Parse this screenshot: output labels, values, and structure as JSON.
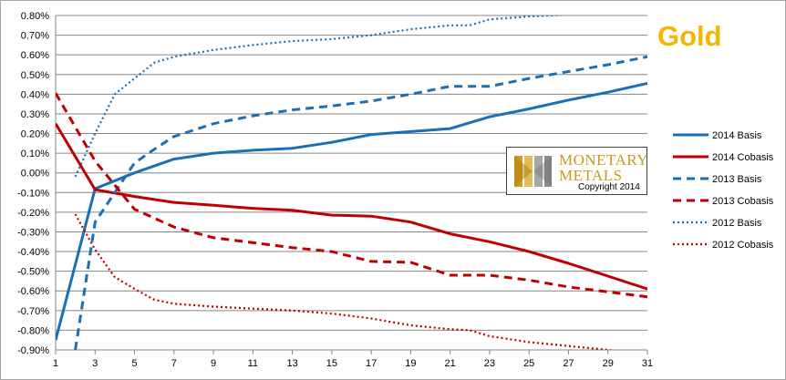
{
  "chart_data": {
    "type": "line",
    "title": "Gold",
    "x_ticks": [
      "1",
      "3",
      "5",
      "7",
      "9",
      "11",
      "13",
      "15",
      "17",
      "19",
      "21",
      "23",
      "25",
      "27",
      "29",
      "31"
    ],
    "y_ticks": [
      "0.80%",
      "0.70%",
      "0.60%",
      "0.50%",
      "0.40%",
      "0.30%",
      "0.20%",
      "0.10%",
      "0.00%",
      "-0.10%",
      "-0.20%",
      "-0.30%",
      "-0.40%",
      "-0.50%",
      "-0.60%",
      "-0.70%",
      "-0.80%",
      "-0.90%"
    ],
    "xlim": [
      1,
      31
    ],
    "ylim": [
      -0.9,
      0.8
    ],
    "y_unit": "%",
    "grid": "horizontal",
    "legend_position": "right",
    "series": [
      {
        "name": "2014 Basis",
        "color": "#1a6fb5",
        "style": "solid",
        "x": [
          1,
          3,
          5,
          7,
          9,
          11,
          13,
          15,
          17,
          19,
          21,
          23,
          25,
          27,
          29,
          31
        ],
        "values": [
          -0.85,
          -0.08,
          0.0,
          0.07,
          0.1,
          0.115,
          0.125,
          0.155,
          0.195,
          0.21,
          0.225,
          0.285,
          0.325,
          0.37,
          0.41,
          0.455
        ]
      },
      {
        "name": "2014 Cobasis",
        "color": "#c00000",
        "style": "solid",
        "x": [
          1,
          3,
          5,
          7,
          9,
          11,
          13,
          15,
          17,
          19,
          21,
          23,
          25,
          27,
          29,
          31
        ],
        "values": [
          0.25,
          -0.085,
          -0.12,
          -0.15,
          -0.165,
          -0.18,
          -0.19,
          -0.215,
          -0.22,
          -0.25,
          -0.31,
          -0.35,
          -0.4,
          -0.46,
          -0.525,
          -0.59
        ]
      },
      {
        "name": "2013 Basis",
        "color": "#1a6fb5",
        "style": "dashed",
        "x": [
          2,
          3,
          4,
          5,
          6,
          7,
          9,
          11,
          13,
          15,
          17,
          19,
          21,
          23,
          25,
          27,
          29,
          31
        ],
        "values": [
          -0.9,
          -0.25,
          -0.1,
          0.05,
          0.12,
          0.185,
          0.25,
          0.29,
          0.32,
          0.34,
          0.365,
          0.4,
          0.44,
          0.44,
          0.48,
          0.515,
          0.55,
          0.59
        ]
      },
      {
        "name": "2013 Cobasis",
        "color": "#c00000",
        "style": "dashed",
        "x": [
          1,
          3,
          5,
          7,
          9,
          11,
          13,
          15,
          17,
          19,
          21,
          23,
          25,
          27,
          29,
          31
        ],
        "values": [
          0.405,
          0.06,
          -0.185,
          -0.275,
          -0.33,
          -0.355,
          -0.38,
          -0.4,
          -0.45,
          -0.455,
          -0.52,
          -0.52,
          -0.545,
          -0.58,
          -0.605,
          -0.63
        ]
      },
      {
        "name": "2012 Basis",
        "color": "#1a6fb5",
        "style": "dotted",
        "x": [
          2,
          3,
          4,
          5,
          6,
          7,
          9,
          11,
          13,
          15,
          17,
          19,
          21,
          22,
          23,
          25,
          27,
          28
        ],
        "values": [
          -0.02,
          0.2,
          0.4,
          0.48,
          0.56,
          0.59,
          0.625,
          0.65,
          0.67,
          0.68,
          0.7,
          0.73,
          0.75,
          0.75,
          0.78,
          0.795,
          0.805,
          0.805
        ]
      },
      {
        "name": "2012 Cobasis",
        "color": "#c00000",
        "style": "dotted",
        "x": [
          2,
          3,
          4,
          5,
          6,
          7,
          9,
          11,
          13,
          15,
          17,
          19,
          21,
          22,
          23,
          25,
          27,
          29,
          30
        ],
        "values": [
          -0.21,
          -0.39,
          -0.53,
          -0.59,
          -0.645,
          -0.665,
          -0.68,
          -0.69,
          -0.7,
          -0.715,
          -0.74,
          -0.775,
          -0.795,
          -0.8,
          -0.83,
          -0.86,
          -0.88,
          -0.9,
          -0.915
        ]
      }
    ]
  },
  "logo": {
    "name_line_1": "MONETARY",
    "name_line_2": "METALS",
    "copyright": "Copyright 2014",
    "color": "#c89a1e"
  }
}
